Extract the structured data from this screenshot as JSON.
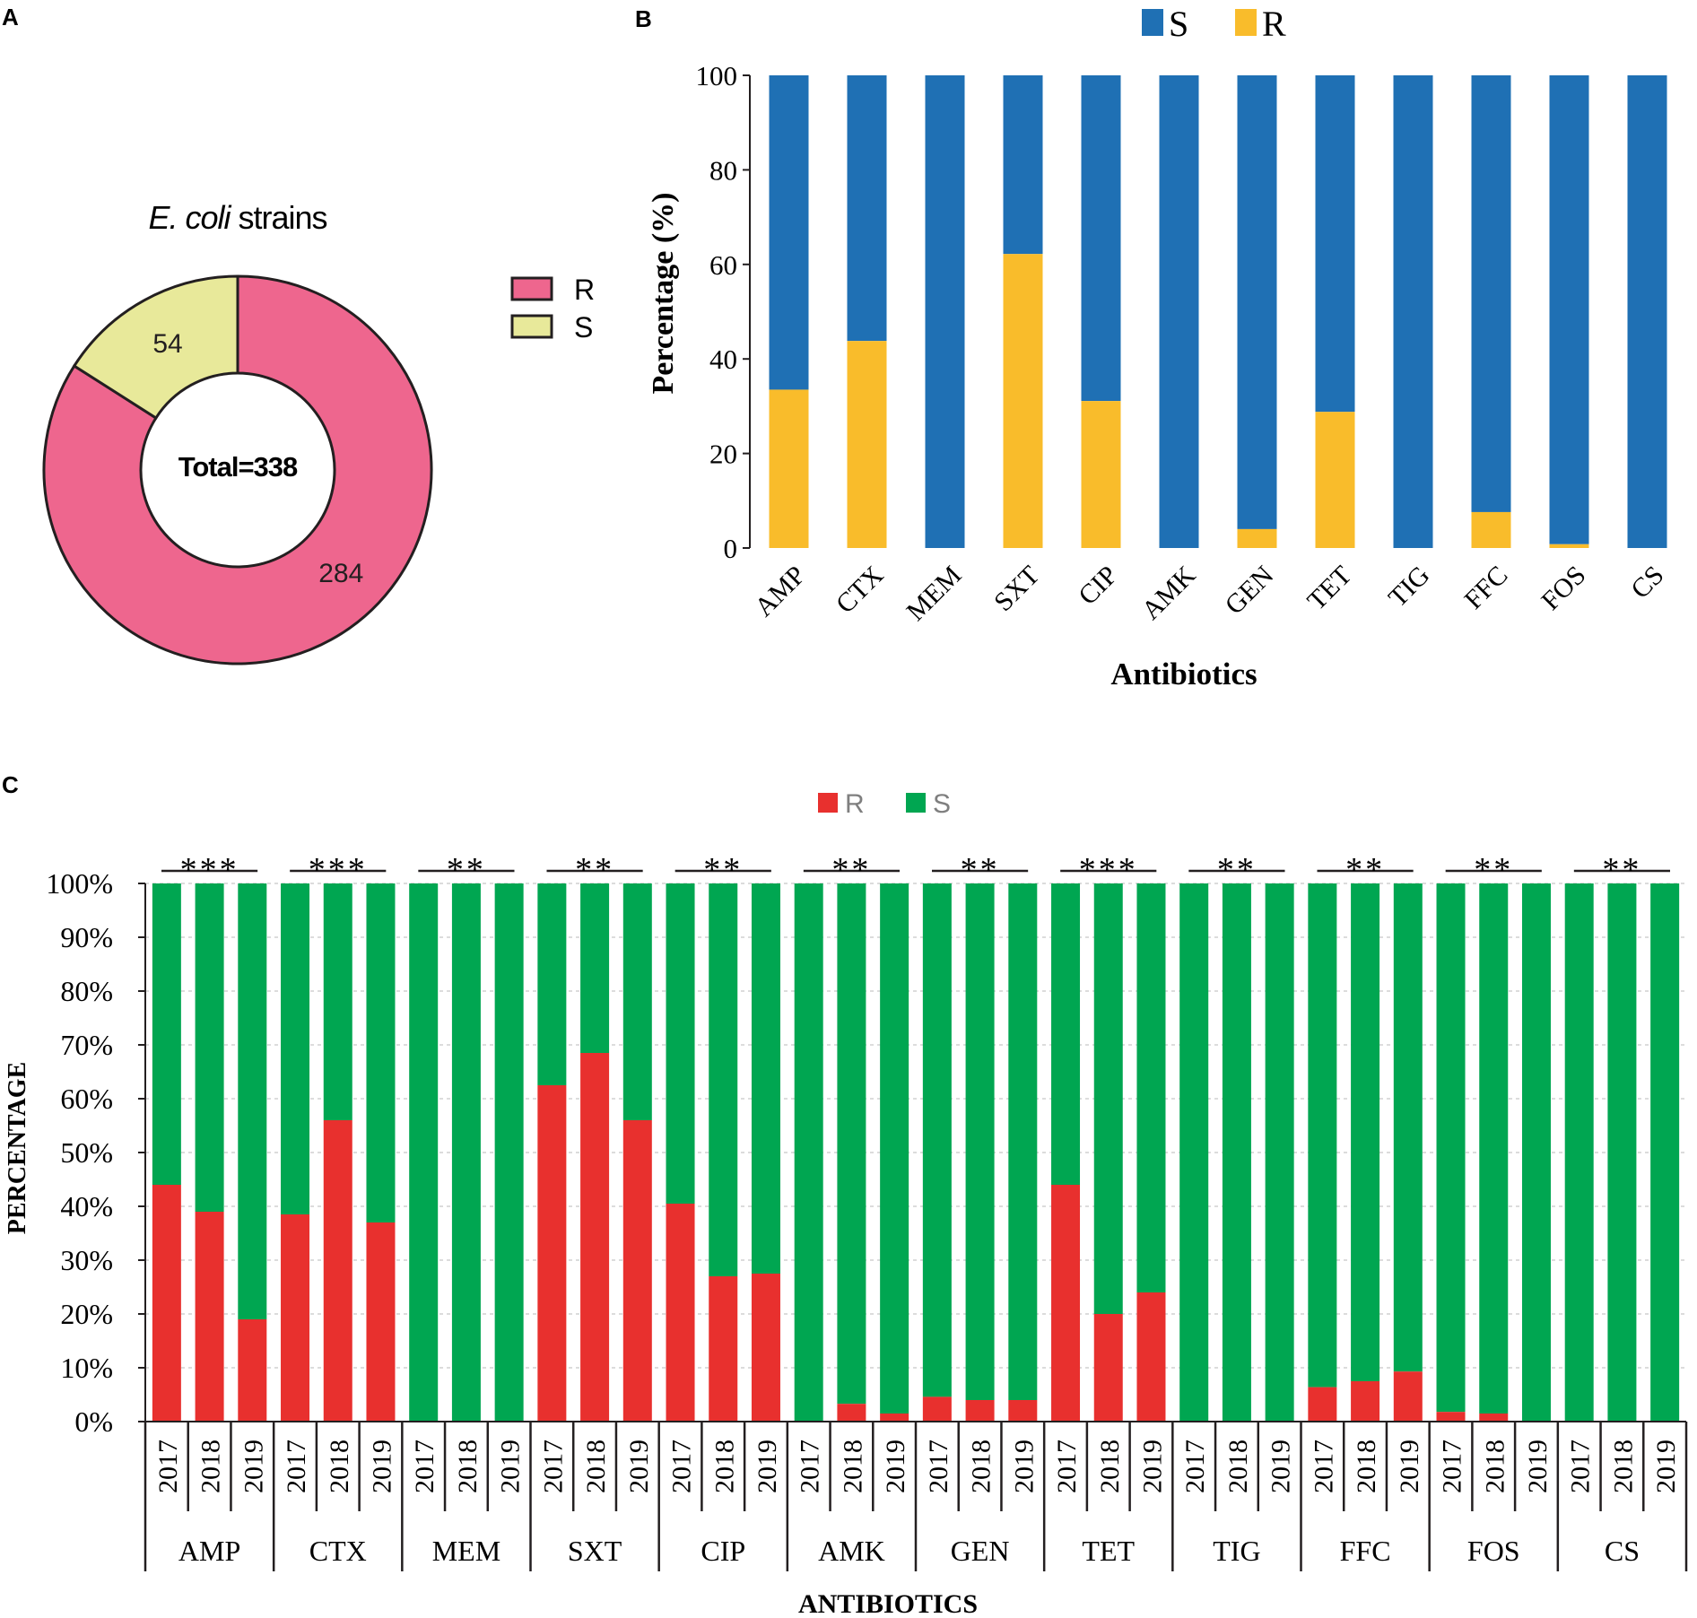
{
  "colors": {
    "pie_r": "#ee668e",
    "pie_s": "#e8e99a",
    "b_s": "#1f70b4",
    "b_r": "#f9bc2b",
    "c_r": "#e8302e",
    "c_s": "#00a651"
  },
  "chart_data": [
    {
      "panel": "A",
      "type": "pie",
      "variant": "donut",
      "title_italic": "E. coli",
      "title_rest": " strains",
      "center_label": "Total=338",
      "slices": [
        {
          "label": "R",
          "value": 284,
          "color": "#ee668e"
        },
        {
          "label": "S",
          "value": 54,
          "color": "#e8e99a"
        }
      ],
      "legend": [
        "R",
        "S"
      ],
      "legend_position": "right"
    },
    {
      "panel": "B",
      "type": "bar",
      "stacked": true,
      "categories": [
        "AMP",
        "CTX",
        "MEM",
        "SXT",
        "CIP",
        "AMK",
        "GEN",
        "TET",
        "TIG",
        "FFC",
        "FOS",
        "CS"
      ],
      "series": [
        {
          "name": "R",
          "color": "#f9bc2b",
          "values": [
            33.5,
            43.8,
            0,
            62.2,
            31.1,
            0,
            4.0,
            28.8,
            0,
            7.6,
            0.8,
            0
          ]
        },
        {
          "name": "S",
          "color": "#1f70b4",
          "values": [
            66.5,
            56.2,
            100,
            37.8,
            68.9,
            100,
            96.0,
            71.2,
            100,
            92.4,
            99.2,
            100
          ]
        }
      ],
      "legend": [
        "S",
        "R"
      ],
      "legend_position": "top",
      "xlabel": "Antibiotics",
      "ylabel": "Percentage (%)",
      "ylim": [
        0,
        100
      ],
      "yticks": [
        "0",
        "20",
        "40",
        "60",
        "80",
        "100"
      ]
    },
    {
      "panel": "C",
      "type": "bar",
      "stacked": true,
      "groups": [
        "AMP",
        "CTX",
        "MEM",
        "SXT",
        "CIP",
        "AMK",
        "GEN",
        "TET",
        "TIG",
        "FFC",
        "FOS",
        "CS"
      ],
      "years": [
        "2017",
        "2018",
        "2019"
      ],
      "series": [
        {
          "name": "R",
          "color": "#e8302e",
          "values": [
            [
              44,
              39,
              19
            ],
            [
              38.5,
              56,
              37
            ],
            [
              0,
              0,
              0
            ],
            [
              62.5,
              68.5,
              56
            ],
            [
              40.5,
              27,
              27.5
            ],
            [
              0,
              3.3,
              1.5
            ],
            [
              4.6,
              4.0,
              4.0
            ],
            [
              44,
              20,
              24
            ],
            [
              0,
              0,
              0
            ],
            [
              6.4,
              7.5,
              9.3
            ],
            [
              1.8,
              1.5,
              0
            ],
            [
              0,
              0,
              0
            ]
          ]
        },
        {
          "name": "S",
          "color": "#00a651",
          "values": [
            [
              56,
              61,
              81
            ],
            [
              61.5,
              44,
              63
            ],
            [
              100,
              100,
              100
            ],
            [
              37.5,
              31.5,
              44
            ],
            [
              59.5,
              73,
              72.5
            ],
            [
              100,
              96.7,
              98.5
            ],
            [
              95.4,
              96,
              96
            ],
            [
              56,
              80,
              76
            ],
            [
              100,
              100,
              100
            ],
            [
              93.6,
              92.5,
              90.7
            ],
            [
              98.2,
              98.5,
              100
            ],
            [
              100,
              100,
              100
            ]
          ]
        }
      ],
      "significance": [
        "***",
        "***",
        "**",
        "**",
        "**",
        "**",
        "**",
        "***",
        "**",
        "**",
        "**",
        "**"
      ],
      "legend": [
        "R",
        "S"
      ],
      "legend_position": "top",
      "xlabel": "ANTIBIOTICS",
      "ylabel": "PERCENTAGE",
      "ylim": [
        0,
        100
      ],
      "yticks": [
        "0%",
        "10%",
        "20%",
        "30%",
        "40%",
        "50%",
        "60%",
        "70%",
        "80%",
        "90%",
        "100%"
      ]
    }
  ],
  "panel_labels": [
    "A",
    "B",
    "C"
  ]
}
